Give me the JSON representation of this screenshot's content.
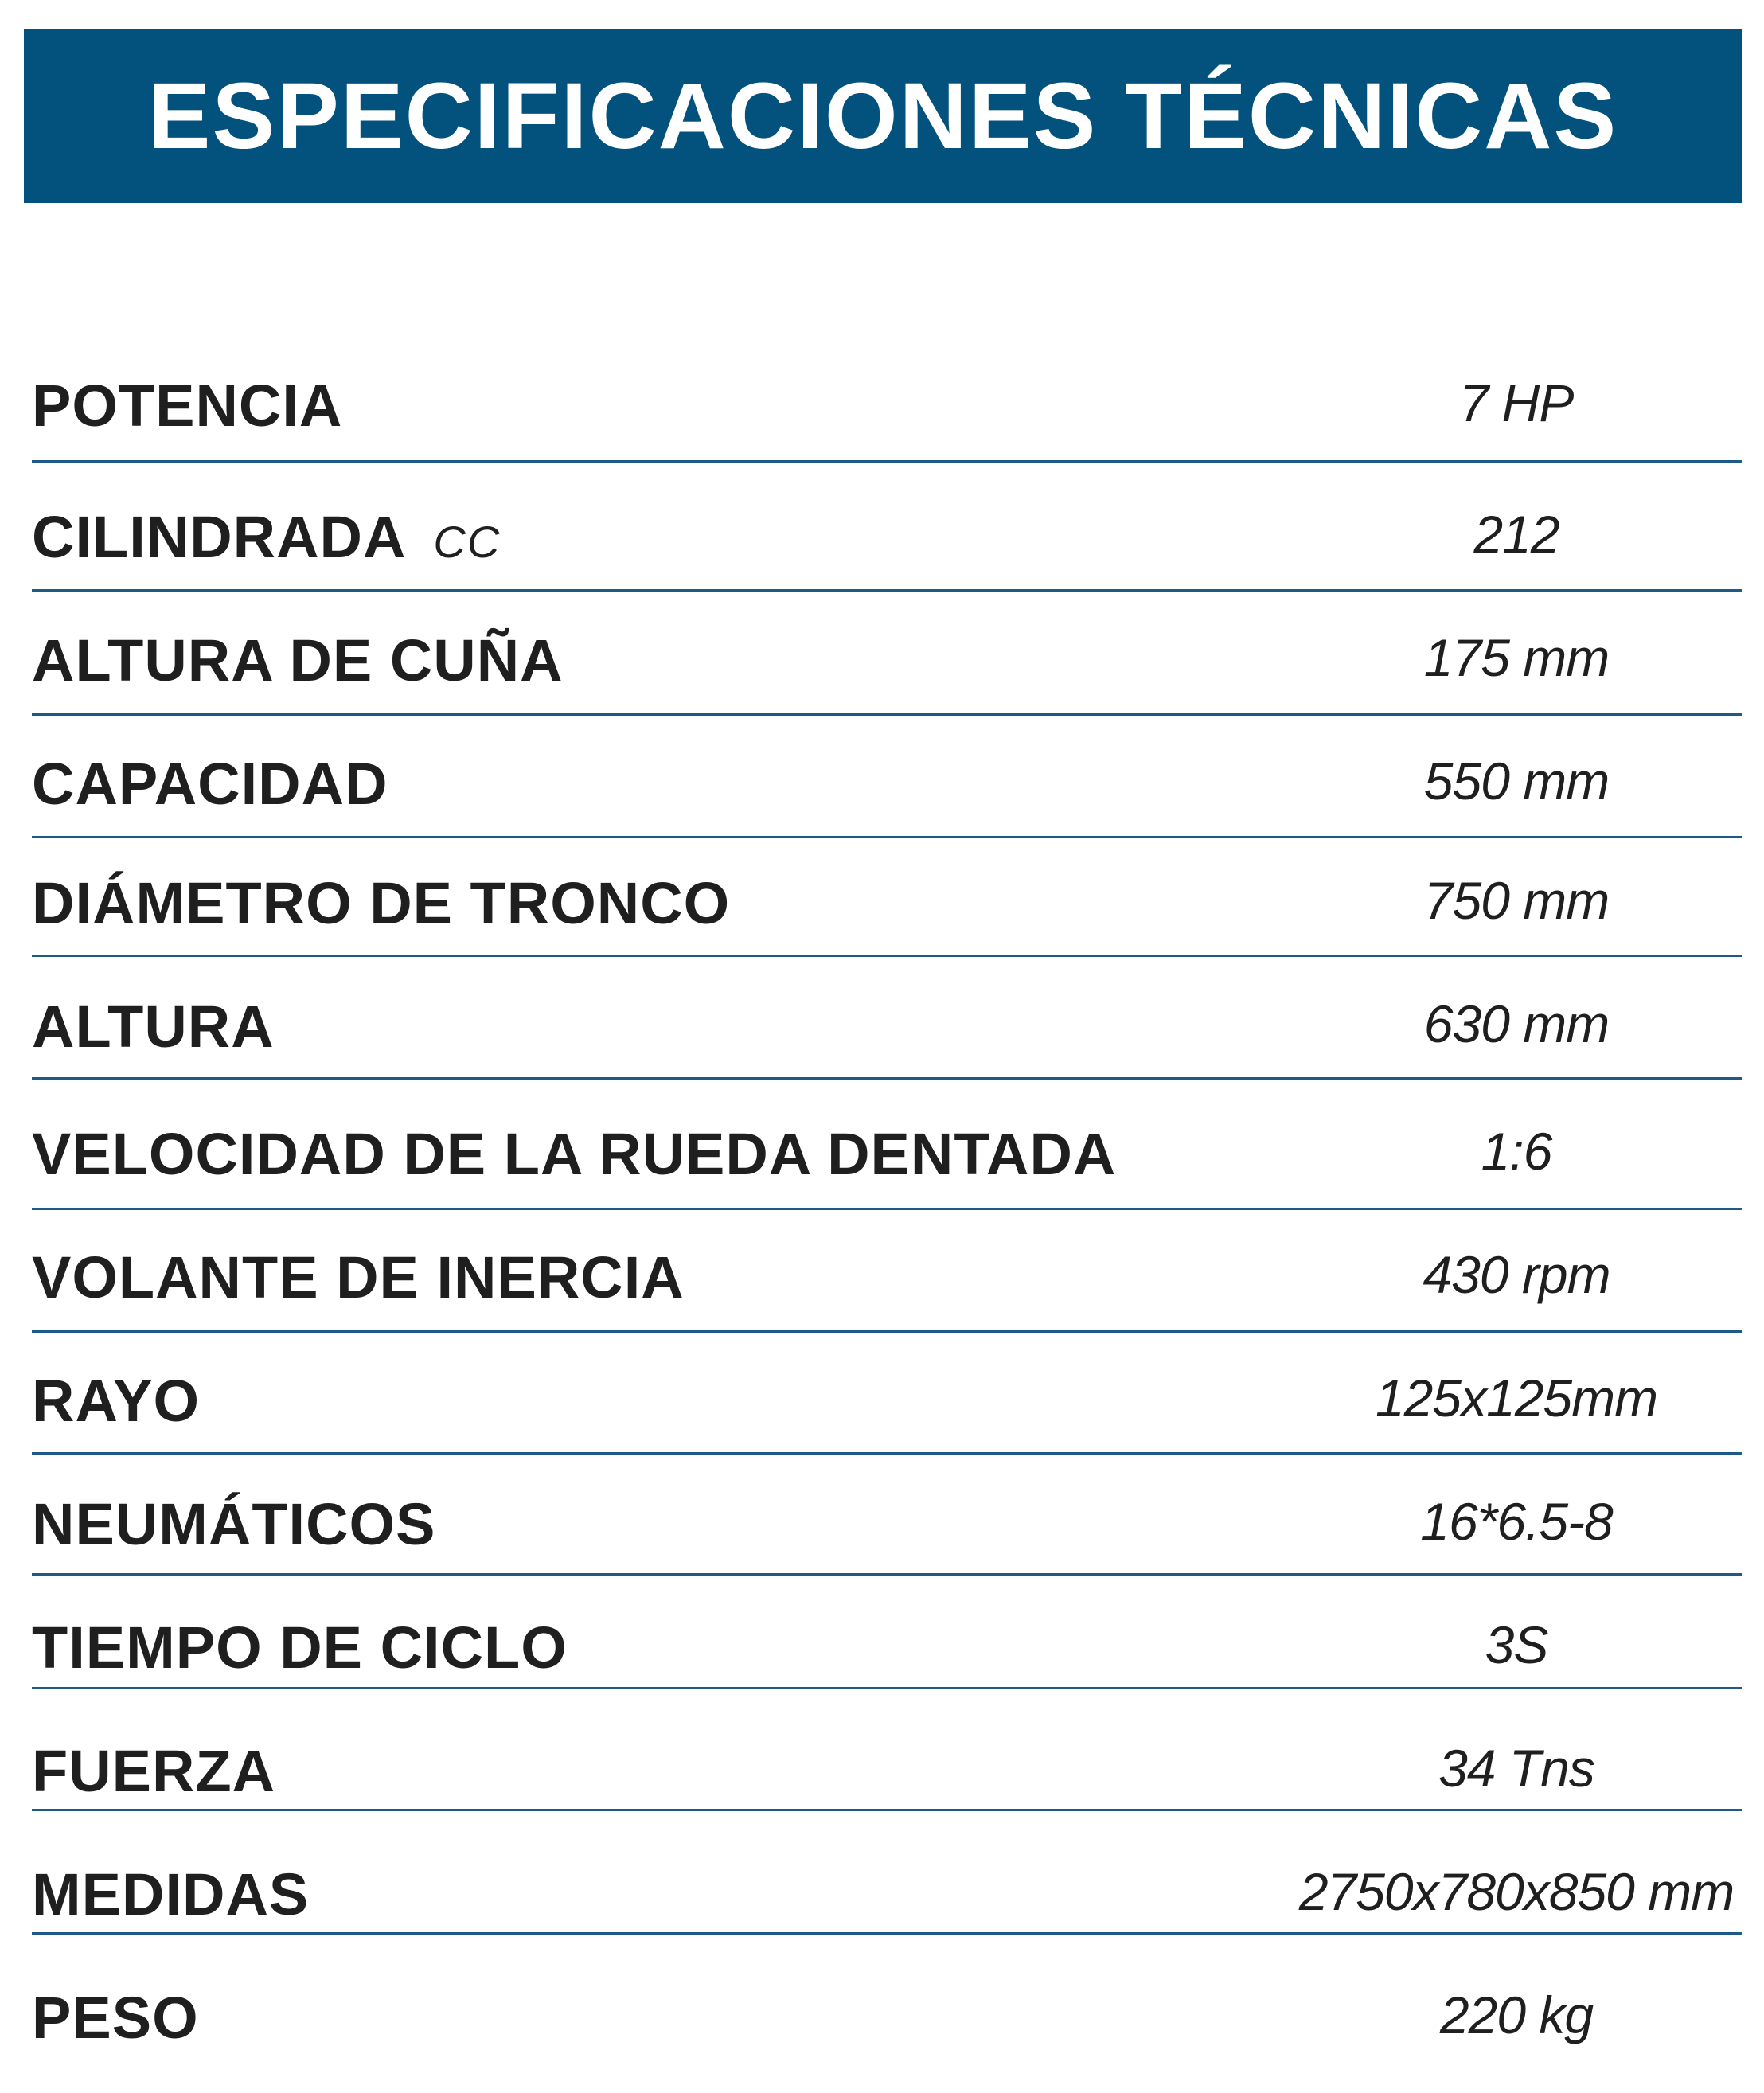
{
  "header": {
    "title": "ESPECIFICACIONES TÉCNICAS",
    "background_color": "#03527e"
  },
  "specs": [
    {
      "label": "POTENCIA",
      "unit": "",
      "value": "7 HP"
    },
    {
      "label": "CILINDRADA",
      "unit": "CC",
      "value": "212"
    },
    {
      "label": "ALTURA DE CUÑA",
      "unit": "",
      "value": "175 mm"
    },
    {
      "label": "CAPACIDAD",
      "unit": "",
      "value": "550 mm"
    },
    {
      "label": "DIÁMETRO DE TRONCO",
      "unit": "",
      "value": "750 mm"
    },
    {
      "label": "ALTURA",
      "unit": "",
      "value": "630 mm"
    },
    {
      "label": "VELOCIDAD DE LA RUEDA DENTADA",
      "unit": "",
      "value": "1:6"
    },
    {
      "label": "VOLANTE DE INERCIA",
      "unit": "",
      "value": "430 rpm"
    },
    {
      "label": "RAYO",
      "unit": "",
      "value": "125x125mm"
    },
    {
      "label": "NEUMÁTICOS",
      "unit": "",
      "value": "16*6.5-8"
    },
    {
      "label": "TIEMPO DE CICLO",
      "unit": "",
      "value": "3S"
    },
    {
      "label": "FUERZA",
      "unit": "",
      "value": "34 Tns"
    },
    {
      "label": "MEDIDAS",
      "unit": "",
      "value": "2750x780x850 mm"
    },
    {
      "label": "PESO",
      "unit": "",
      "value": "220 kg"
    }
  ],
  "colors": {
    "text": "#1f1f1f",
    "divider": "#1d5a86"
  }
}
